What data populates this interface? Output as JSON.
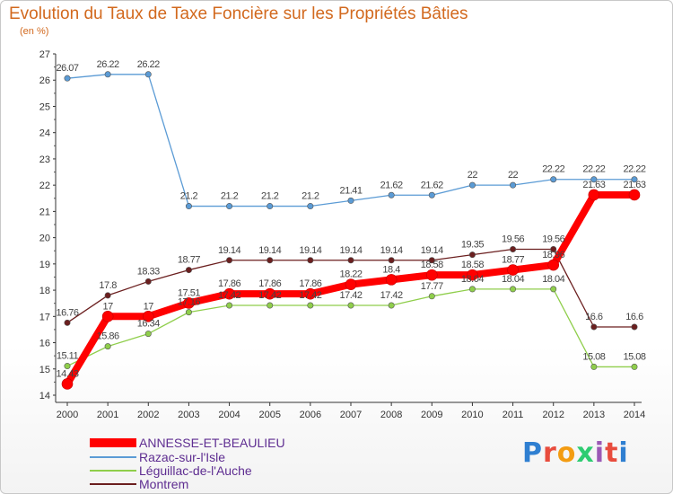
{
  "chart_data": {
    "type": "line",
    "title": "Evolution du Taux de Taxe Foncière sur les Propriétés Bâties",
    "subtitle": "(en %)",
    "x": [
      "2000",
      "2001",
      "2002",
      "2003",
      "2004",
      "2005",
      "2006",
      "2007",
      "2008",
      "2009",
      "2010",
      "2011",
      "2012",
      "2013",
      "2014"
    ],
    "ylim": [
      14,
      27
    ],
    "yticks": [
      14,
      15,
      16,
      17,
      18,
      19,
      20,
      21,
      22,
      23,
      24,
      25,
      26,
      27
    ],
    "grid": false,
    "legend_position": "bottom-left",
    "series": [
      {
        "name": "ANNESSE-ET-BEAULIEU",
        "color": "#ff0000",
        "values": [
          14.43,
          17,
          17,
          17.51,
          17.86,
          17.86,
          17.86,
          18.22,
          18.4,
          18.58,
          18.58,
          18.77,
          18.96,
          21.63,
          21.63
        ],
        "labels": [
          "14.43",
          "17",
          "17",
          "17.51",
          "17.86",
          "17.86",
          "17.86",
          "18.22",
          "18.4",
          "18.58",
          "18.58",
          "18.77",
          "18.96",
          "21.63",
          "21.63"
        ]
      },
      {
        "name": "Razac-sur-l'Isle",
        "color": "#5b9bd5",
        "values": [
          26.07,
          26.22,
          26.22,
          21.2,
          21.2,
          21.2,
          21.2,
          21.41,
          21.62,
          21.62,
          22,
          22,
          22.22,
          22.22,
          22.22
        ],
        "labels": [
          "26.07",
          "26.22",
          "26.22",
          "21.2",
          "21.2",
          "21.2",
          "21.2",
          "21.41",
          "21.62",
          "21.62",
          "22",
          "22",
          "22.22",
          "22.22",
          "22.22"
        ]
      },
      {
        "name": "Léguillac-de-l'Auche",
        "color": "#8fce4b",
        "values": [
          15.11,
          15.86,
          16.34,
          17.16,
          17.42,
          17.42,
          17.42,
          17.42,
          17.42,
          17.77,
          18.04,
          18.04,
          18.04,
          15.08,
          15.08
        ],
        "labels": [
          "15.11",
          "15.86",
          "16.34",
          "17.16",
          "17.42",
          "17.42",
          "17.42",
          "17.42",
          "17.42",
          "17.77",
          "18.04",
          "18.04",
          "18.04",
          "15.08",
          "15.08"
        ]
      },
      {
        "name": "Montrem",
        "color": "#6b1f1f",
        "values": [
          16.76,
          17.8,
          18.33,
          18.77,
          19.14,
          19.14,
          19.14,
          19.14,
          19.14,
          19.14,
          19.35,
          19.56,
          19.56,
          16.6,
          16.6
        ],
        "labels": [
          "16.76",
          "17.8",
          "18.33",
          "18.77",
          "19.14",
          "19.14",
          "19.14",
          "19.14",
          "19.14",
          "19.14",
          "19.35",
          "19.56",
          "19.56",
          "16.6",
          "16.6"
        ]
      }
    ]
  },
  "logo": {
    "text": "Proxiti"
  }
}
